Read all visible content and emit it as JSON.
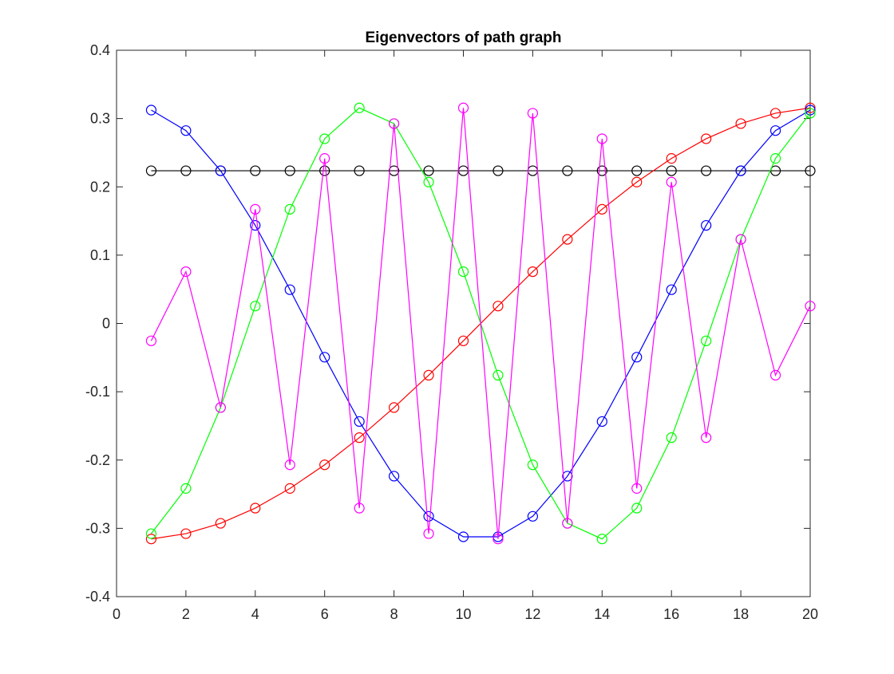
{
  "chart_data": {
    "type": "line",
    "title": "Eigenvectors of path graph",
    "xlabel": "",
    "ylabel": "",
    "xlim": [
      0,
      20
    ],
    "ylim": [
      -0.4,
      0.4
    ],
    "xticks": [
      "0",
      "2",
      "4",
      "6",
      "8",
      "10",
      "12",
      "14",
      "16",
      "18",
      "20"
    ],
    "yticks": [
      "-0.4",
      "-0.3",
      "-0.2",
      "-0.1",
      "0",
      "0.1",
      "0.2",
      "0.3",
      "0.4"
    ],
    "grid": false,
    "marker": "circle",
    "x": [
      1,
      2,
      3,
      4,
      5,
      6,
      7,
      8,
      9,
      10,
      11,
      12,
      13,
      14,
      15,
      16,
      17,
      18,
      19,
      20
    ],
    "series": [
      {
        "color": "#000000",
        "values": [
          0.2236,
          0.2236,
          0.2236,
          0.2236,
          0.2236,
          0.2236,
          0.2236,
          0.2236,
          0.2236,
          0.2236,
          0.2236,
          0.2236,
          0.2236,
          0.2236,
          0.2236,
          0.2236,
          0.2236,
          0.2236,
          0.2236,
          0.2236
        ]
      },
      {
        "color": "#ff0000",
        "values": [
          -0.3156,
          -0.3078,
          -0.2926,
          -0.2704,
          -0.2416,
          -0.207,
          -0.1672,
          -0.1231,
          -0.0758,
          -0.0255,
          0.0255,
          0.0758,
          0.1231,
          0.1672,
          0.207,
          0.2416,
          0.2704,
          0.2926,
          0.3078,
          0.3156
        ]
      },
      {
        "color": "#0000ff",
        "values": [
          0.3124,
          0.2824,
          0.2236,
          0.1436,
          0.0494,
          -0.0494,
          -0.1436,
          -0.2236,
          -0.2824,
          -0.3124,
          -0.3124,
          -0.2824,
          -0.2236,
          -0.1436,
          -0.0494,
          0.0494,
          0.1436,
          0.2236,
          0.2824,
          0.3124
        ]
      },
      {
        "color": "#00ff00",
        "values": [
          -0.3078,
          -0.2416,
          -0.1231,
          0.0255,
          0.1672,
          0.2704,
          0.3156,
          0.2926,
          0.207,
          0.0758,
          -0.0758,
          -0.207,
          -0.2926,
          -0.3156,
          -0.2704,
          -0.1672,
          -0.0255,
          0.1231,
          0.2416,
          0.3078
        ]
      },
      {
        "color": "#ff00ff",
        "values": [
          -0.0255,
          0.0758,
          -0.1231,
          0.1672,
          -0.207,
          0.2416,
          -0.2704,
          0.2926,
          -0.3078,
          0.3156,
          -0.3156,
          0.3078,
          -0.2926,
          0.2704,
          -0.2416,
          0.207,
          -0.1672,
          0.1231,
          -0.0758,
          0.0255
        ]
      }
    ]
  }
}
